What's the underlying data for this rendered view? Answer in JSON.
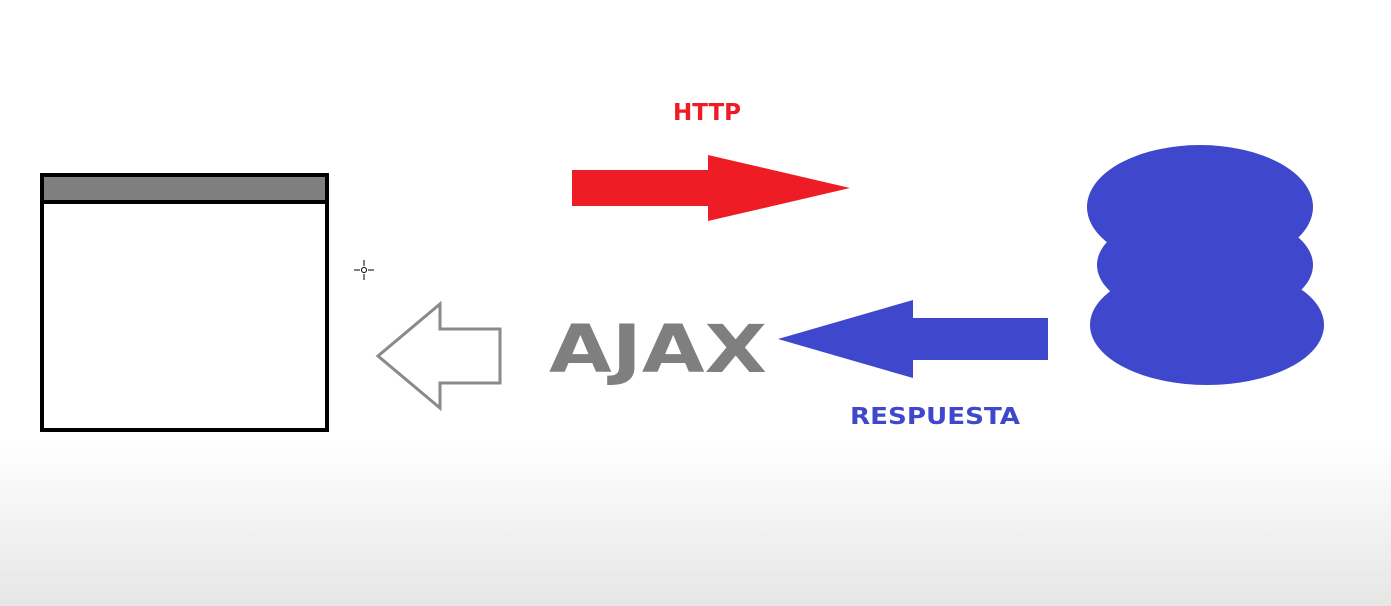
{
  "diagram": {
    "request_label": "HTTP",
    "technology_label": "AJAX",
    "response_label": "RESPUESTA"
  },
  "colors": {
    "request": "#ee1c25",
    "response": "#3f48cc",
    "technology": "#7f7f7f",
    "browser_titlebar": "#7f7f7f",
    "browser_frame": "#000000",
    "return_arrow_outline": "#8a8a8a"
  },
  "icons": {
    "client": "browser-window-icon",
    "server": "database-server-icon",
    "cursor": "crosshair-cursor-icon"
  }
}
